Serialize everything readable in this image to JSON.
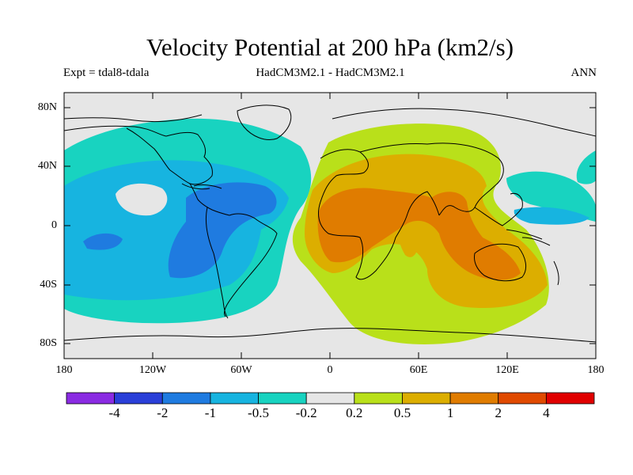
{
  "title": "Velocity Potential at 200 hPa (km2/s)",
  "subtitle_left": "Expt = tdal8-tdala",
  "subtitle_center": "HadCM3M2.1 - HadCM3M2.1",
  "subtitle_right": "ANN",
  "axes": {
    "lat_ticks": [
      "80N",
      "40N",
      "0",
      "40S",
      "80S"
    ],
    "lon_ticks": [
      "180",
      "120W",
      "60W",
      "0",
      "60E",
      "120E",
      "180"
    ],
    "lon_range": [
      -180,
      180
    ],
    "lat_range": [
      -90,
      90
    ]
  },
  "colorbar": {
    "labels": [
      "-4",
      "-2",
      "-1",
      "-0.5",
      "-0.2",
      "0.2",
      "0.5",
      "1",
      "2",
      "4"
    ],
    "colors": [
      "#8a2be2",
      "#2a3fd8",
      "#1f7be0",
      "#17b4e0",
      "#18d3c0",
      "#e6e6e6",
      "#b9e01a",
      "#dcae00",
      "#e07c00",
      "#e04a00",
      "#e00000"
    ]
  },
  "field_colors": {
    "background": "#e6e6e6",
    "neg_02": "#18d3c0",
    "neg_05": "#17b4e0",
    "neg_1": "#1f7be0",
    "pos_02": "#b9e01a",
    "pos_05": "#dcae00",
    "pos_1": "#e07c00",
    "coast": "#000000"
  }
}
